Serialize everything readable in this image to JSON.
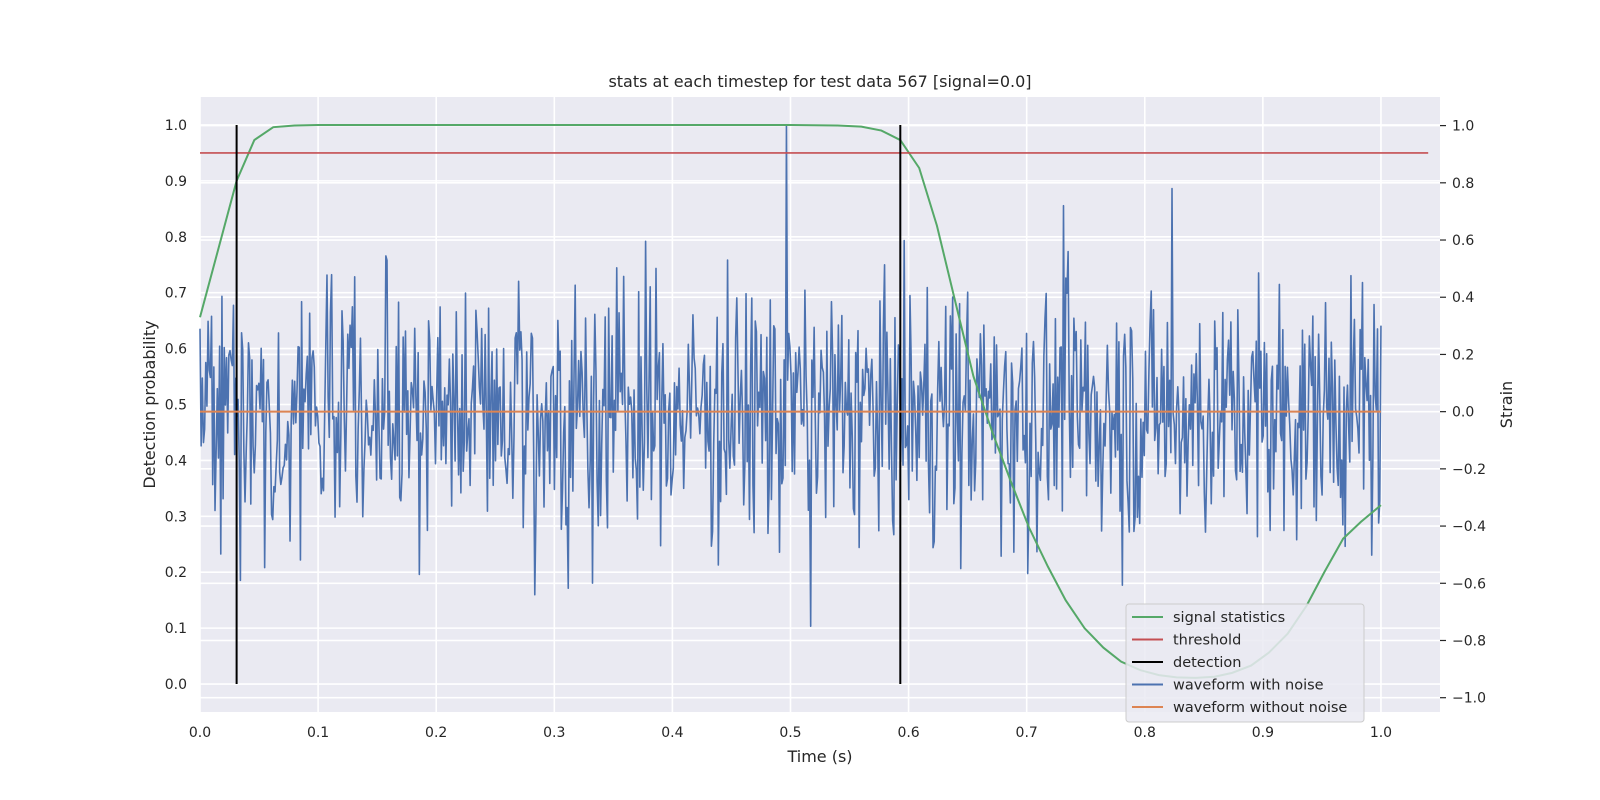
{
  "chart_data": {
    "type": "line",
    "title": "stats at each timestep for test data 567 [signal=0.0]",
    "xlabel": "Time (s)",
    "ylabel_left": "Detection probability",
    "ylabel_right": "Strain",
    "xlim": [
      0.0,
      1.05
    ],
    "ylim_left": [
      -0.05,
      1.05
    ],
    "ylim_right": [
      -1.05,
      1.1
    ],
    "x_ticks": [
      "0.0",
      "0.1",
      "0.2",
      "0.3",
      "0.4",
      "0.5",
      "0.6",
      "0.7",
      "0.8",
      "0.9",
      "1.0"
    ],
    "y_left_ticks": [
      "0.0",
      "0.1",
      "0.2",
      "0.3",
      "0.4",
      "0.5",
      "0.6",
      "0.7",
      "0.8",
      "0.9",
      "1.0"
    ],
    "y_right_ticks": [
      "−1.0",
      "−0.8",
      "−0.6",
      "−0.4",
      "−0.2",
      "0.0",
      "0.2",
      "0.4",
      "0.6",
      "0.8",
      "1.0"
    ],
    "grid": true,
    "legend_position": "lower-right",
    "series": [
      {
        "name": "signal statistics",
        "axis": "left",
        "color": "#55a868",
        "x": [
          0.0,
          0.031,
          0.046,
          0.062,
          0.08,
          0.1,
          0.2,
          0.3,
          0.4,
          0.5,
          0.54,
          0.56,
          0.577,
          0.593,
          0.609,
          0.624,
          0.64,
          0.655,
          0.671,
          0.687,
          0.702,
          0.718,
          0.733,
          0.749,
          0.765,
          0.78,
          0.796,
          0.812,
          0.827,
          0.843,
          0.859,
          0.874,
          0.89,
          0.905,
          0.921,
          0.937,
          0.952,
          0.968,
          0.983,
          1.0
        ],
        "y": [
          0.656,
          0.9,
          0.973,
          0.996,
          0.999,
          1.0,
          1.0,
          1.0,
          1.0,
          1.0,
          0.999,
          0.997,
          0.99,
          0.973,
          0.923,
          0.82,
          0.68,
          0.55,
          0.45,
          0.36,
          0.28,
          0.21,
          0.15,
          0.1,
          0.065,
          0.04,
          0.025,
          0.016,
          0.012,
          0.011,
          0.013,
          0.02,
          0.033,
          0.056,
          0.09,
          0.14,
          0.2,
          0.26,
          0.29,
          0.32
        ]
      },
      {
        "name": "threshold",
        "axis": "left",
        "color": "#c44e52",
        "x": [
          0.0,
          1.04
        ],
        "y": [
          0.95,
          0.95
        ]
      },
      {
        "name": "detection",
        "axis": "left",
        "color": "#000000",
        "x_positions": [
          0.031,
          0.593
        ],
        "y_range": [
          0.0,
          1.0
        ]
      },
      {
        "name": "waveform with noise",
        "axis": "right",
        "color": "#4c72b0",
        "x_range": [
          0.0,
          1.0
        ],
        "n_points": 1024,
        "generated": true,
        "stats": {
          "mean": 0.0,
          "std": 0.22,
          "min": -0.75,
          "max": 1.0
        },
        "notable_values": [
          {
            "x": 0.497,
            "y": 1.0
          },
          {
            "x": 0.517,
            "y": -0.75
          },
          {
            "x": 0.283,
            "y": -0.64
          },
          {
            "x": 0.823,
            "y": 0.78
          },
          {
            "x": 0.731,
            "y": 0.72
          }
        ]
      },
      {
        "name": "waveform without noise",
        "axis": "right",
        "color": "#dd8452",
        "x": [
          0.0,
          1.0
        ],
        "y": [
          0.0,
          0.0
        ]
      }
    ]
  }
}
